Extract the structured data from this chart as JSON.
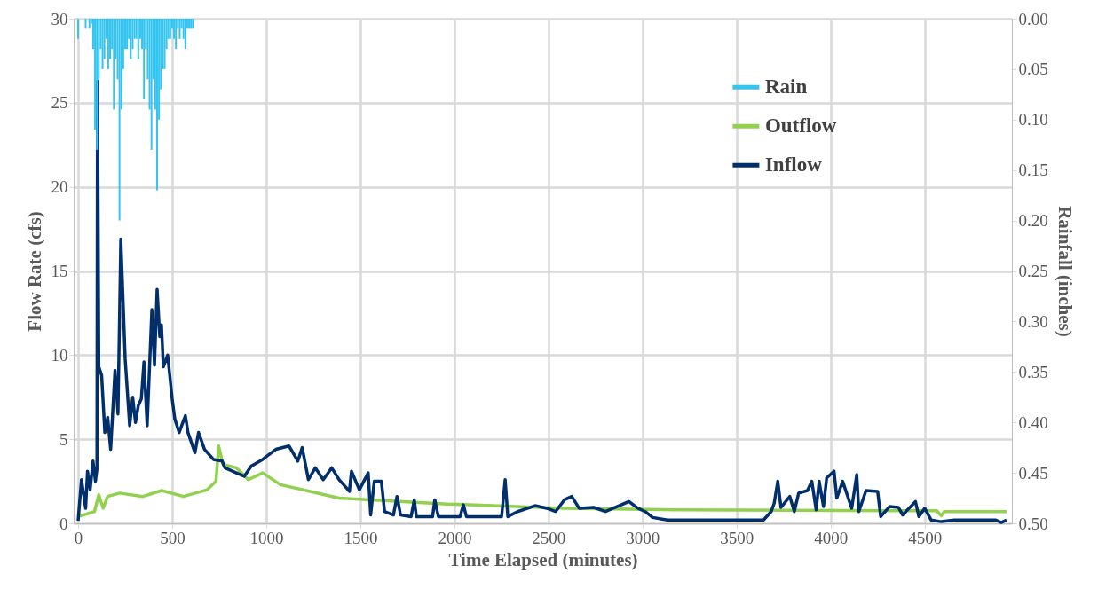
{
  "chart_data": {
    "type": "line",
    "xlabel": "Time Elapsed (minutes)",
    "ylabel": "Flow Rate (cfs)",
    "y2label": "Rainfall (inches)",
    "xlim": [
      0,
      4940
    ],
    "xticks": [
      0,
      500,
      1000,
      1500,
      2000,
      2500,
      3000,
      3500,
      4000,
      4500
    ],
    "ylim": [
      0,
      30
    ],
    "yticks": [
      0,
      5,
      10,
      15,
      20,
      25,
      30
    ],
    "y2lim": [
      0.5,
      0
    ],
    "y2ticks": [
      {
        "value": 0,
        "label": "0.00"
      },
      {
        "value": 0.05,
        "label": "0.05"
      },
      {
        "value": 0.1,
        "label": "0.10"
      },
      {
        "value": 0.15,
        "label": "0.15"
      },
      {
        "value": 0.2,
        "label": "0.20"
      },
      {
        "value": 0.25,
        "label": "0.25"
      },
      {
        "value": 0.3,
        "label": "0.30"
      },
      {
        "value": 0.35,
        "label": "0.35"
      },
      {
        "value": 0.4,
        "label": "0.40"
      },
      {
        "value": 0.45,
        "label": "0.45"
      },
      {
        "value": 0.5,
        "label": "0.50"
      }
    ],
    "grid": true,
    "legend": "top right",
    "series": [
      {
        "name": "Rain",
        "type": "bar",
        "axis": "y2",
        "color": "#33c4f0",
        "x": [
          0,
          10,
          20,
          30,
          40,
          50,
          60,
          70,
          80,
          90,
          100,
          110,
          120,
          130,
          140,
          150,
          160,
          170,
          180,
          190,
          200,
          210,
          220,
          230,
          240,
          250,
          260,
          270,
          280,
          290,
          300,
          310,
          320,
          330,
          340,
          350,
          360,
          370,
          380,
          390,
          400,
          410,
          420,
          430,
          440,
          450,
          460,
          470,
          480,
          490,
          500,
          510,
          520,
          530,
          540,
          550,
          560,
          570,
          580,
          590,
          600,
          610
        ],
        "values": [
          0.02,
          0,
          0,
          0,
          0.01,
          0,
          0.01,
          0.005,
          0.03,
          0.11,
          0.13,
          0.06,
          0.03,
          0.05,
          0.04,
          0.02,
          0.05,
          0.04,
          0.03,
          0.09,
          0.04,
          0.06,
          0.2,
          0.09,
          0.05,
          0.03,
          0.03,
          0.02,
          0.04,
          0.03,
          0.02,
          0.02,
          0.04,
          0.02,
          0.03,
          0.08,
          0.03,
          0.06,
          0.09,
          0.13,
          0.06,
          0.09,
          0.17,
          0.1,
          0.07,
          0.05,
          0.05,
          0.03,
          0.02,
          0.02,
          0.01,
          0.02,
          0.03,
          0.01,
          0.02,
          0.01,
          0.02,
          0.03,
          0.01,
          0.01,
          0.01,
          0.01
        ]
      },
      {
        "name": "Outflow",
        "color": "#92d050",
        "x": [
          0,
          87,
          110,
          133,
          157,
          220,
          344,
          444,
          560,
          686,
          733,
          747,
          770,
          841,
          906,
          981,
          1075,
          1233,
          1387,
          1961,
          2587,
          3208,
          4565,
          4588,
          4604,
          4935
        ],
        "values": [
          0.4,
          0.7,
          1.7,
          0.9,
          1.6,
          1.8,
          1.6,
          1.95,
          1.6,
          2.0,
          2.5,
          4.6,
          3.5,
          3.3,
          2.6,
          3.0,
          2.3,
          1.9,
          1.5,
          1.15,
          0.9,
          0.8,
          0.75,
          0.45,
          0.7,
          0.7
        ]
      },
      {
        "name": "Inflow",
        "color": "#002f6c",
        "x": [
          0,
          18,
          40,
          50,
          64,
          79,
          92,
          100,
          103,
          110,
          125,
          142,
          157,
          173,
          196,
          212,
          227,
          250,
          274,
          290,
          305,
          320,
          336,
          350,
          367,
          392,
          406,
          420,
          434,
          443,
          453,
          476,
          500,
          514,
          537,
          570,
          584,
          621,
          640,
          672,
          719,
          766,
          780,
          841,
          883,
          920,
          981,
          1051,
          1121,
          1168,
          1191,
          1224,
          1261,
          1303,
          1348,
          1387,
          1442,
          1453,
          1495,
          1542,
          1555,
          1574,
          1612,
          1629,
          1676,
          1695,
          1714,
          1770,
          1787,
          1798,
          1884,
          1896,
          1915,
          2030,
          2048,
          2064,
          2251,
          2270,
          2284,
          2336,
          2429,
          2491,
          2538,
          2585,
          2624,
          2663,
          2741,
          2803,
          2928,
          2975,
          3014,
          3054,
          3132,
          3643,
          3684,
          3700,
          3719,
          3736,
          3783,
          3807,
          3830,
          3877,
          3900,
          3923,
          3939,
          3962,
          3979,
          4018,
          4033,
          4064,
          4112,
          4139,
          4150,
          4188,
          4250,
          4266,
          4313,
          4360,
          4383,
          4451,
          4469,
          4500,
          4534,
          4588,
          4658,
          4876,
          4907,
          4935
        ],
        "values": [
          0.15,
          2.6,
          0.9,
          3.1,
          2.0,
          3.7,
          2.5,
          3.2,
          26.3,
          9.3,
          8.8,
          5.4,
          6.3,
          4.4,
          9.1,
          6.5,
          16.9,
          9.8,
          5.8,
          7.5,
          6.0,
          7.0,
          7.4,
          9.6,
          5.8,
          12.7,
          9.4,
          13.9,
          11.1,
          11.8,
          9.3,
          10.0,
          7.4,
          6.2,
          5.4,
          6.4,
          5.4,
          4.2,
          5.4,
          4.4,
          3.8,
          3.7,
          3.3,
          3.0,
          2.8,
          3.4,
          3.8,
          4.4,
          4.6,
          3.7,
          4.5,
          2.6,
          3.3,
          2.6,
          3.3,
          2.6,
          1.9,
          3.1,
          2.0,
          3.0,
          0.5,
          2.5,
          2.5,
          0.7,
          0.5,
          1.6,
          0.5,
          0.4,
          1.4,
          0.4,
          0.4,
          1.4,
          0.4,
          0.4,
          1.1,
          0.4,
          0.4,
          2.6,
          0.4,
          0.7,
          1.05,
          0.9,
          0.7,
          1.4,
          1.6,
          0.9,
          0.95,
          0.7,
          1.3,
          0.9,
          0.7,
          0.35,
          0.2,
          0.2,
          0.7,
          1.2,
          2.5,
          0.95,
          1.6,
          0.7,
          1.8,
          1.95,
          2.5,
          0.8,
          2.5,
          1.0,
          2.7,
          3.1,
          1.5,
          2.5,
          0.9,
          2.9,
          0.7,
          1.95,
          1.9,
          0.4,
          1.0,
          0.95,
          0.5,
          1.3,
          0.4,
          0.9,
          0.2,
          0.1,
          0.2,
          0.2,
          0.05,
          0.2
        ]
      }
    ]
  }
}
